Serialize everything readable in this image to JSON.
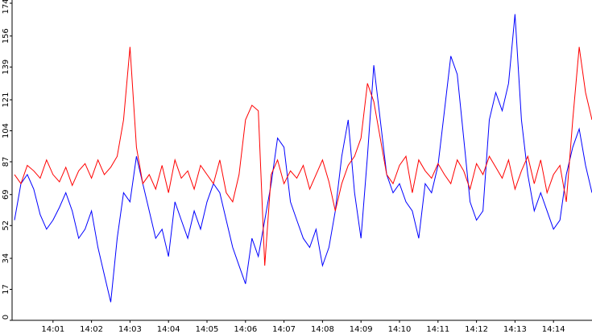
{
  "chart_data": {
    "type": "line",
    "categories": [
      null,
      null,
      null,
      null,
      null,
      null,
      "14:01",
      null,
      null,
      null,
      null,
      null,
      "14:02",
      null,
      null,
      null,
      null,
      null,
      "14:03",
      null,
      null,
      null,
      null,
      null,
      "14:04",
      null,
      null,
      null,
      null,
      null,
      "14:05",
      null,
      null,
      null,
      null,
      null,
      "14:06",
      null,
      null,
      null,
      null,
      null,
      "14:07",
      null,
      null,
      null,
      null,
      null,
      "14:08",
      null,
      null,
      null,
      null,
      null,
      "14:09",
      null,
      null,
      null,
      null,
      null,
      "14:10",
      null,
      null,
      null,
      null,
      null,
      "14:11",
      null,
      null,
      null,
      null,
      null,
      "14:12",
      null,
      null,
      null,
      null,
      null,
      "14:13",
      null,
      null,
      null,
      null,
      null,
      "14:14",
      null,
      null,
      null,
      null,
      null,
      null
    ],
    "series": [
      {
        "color": "#0000ff",
        "values": [
          55,
          75,
          80,
          72,
          58,
          50,
          55,
          62,
          70,
          60,
          45,
          50,
          60,
          40,
          25,
          10,
          45,
          70,
          65,
          90,
          75,
          60,
          45,
          50,
          35,
          65,
          55,
          45,
          60,
          50,
          65,
          75,
          70,
          55,
          40,
          30,
          20,
          45,
          35,
          55,
          75,
          100,
          95,
          65,
          55,
          45,
          40,
          50,
          30,
          40,
          60,
          90,
          110,
          70,
          45,
          90,
          140,
          110,
          80,
          70,
          75,
          65,
          60,
          45,
          75,
          70,
          85,
          115,
          145,
          135,
          100,
          65,
          55,
          60,
          110,
          125,
          115,
          130,
          168,
          110,
          80,
          60,
          70,
          60,
          50,
          55,
          80,
          95,
          105,
          85,
          70
        ]
      },
      {
        "color": "#ff0000",
        "values": [
          80,
          75,
          85,
          82,
          78,
          88,
          80,
          76,
          84,
          74,
          82,
          86,
          78,
          88,
          80,
          84,
          90,
          110,
          150,
          95,
          75,
          80,
          72,
          85,
          70,
          88,
          78,
          82,
          72,
          85,
          80,
          75,
          88,
          70,
          65,
          80,
          110,
          118,
          115,
          30,
          80,
          88,
          75,
          82,
          78,
          85,
          72,
          80,
          88,
          76,
          60,
          75,
          85,
          90,
          100,
          130,
          120,
          100,
          80,
          75,
          85,
          90,
          70,
          88,
          82,
          78,
          86,
          80,
          75,
          88,
          82,
          72,
          86,
          80,
          90,
          84,
          78,
          88,
          72,
          82,
          90,
          75,
          88,
          70,
          80,
          85,
          65,
          110,
          150,
          125,
          110
        ]
      }
    ],
    "ylim": [
      0,
      174
    ],
    "yticks": [
      0,
      17,
      34,
      52,
      69,
      87,
      104,
      121,
      139,
      156,
      174
    ]
  }
}
